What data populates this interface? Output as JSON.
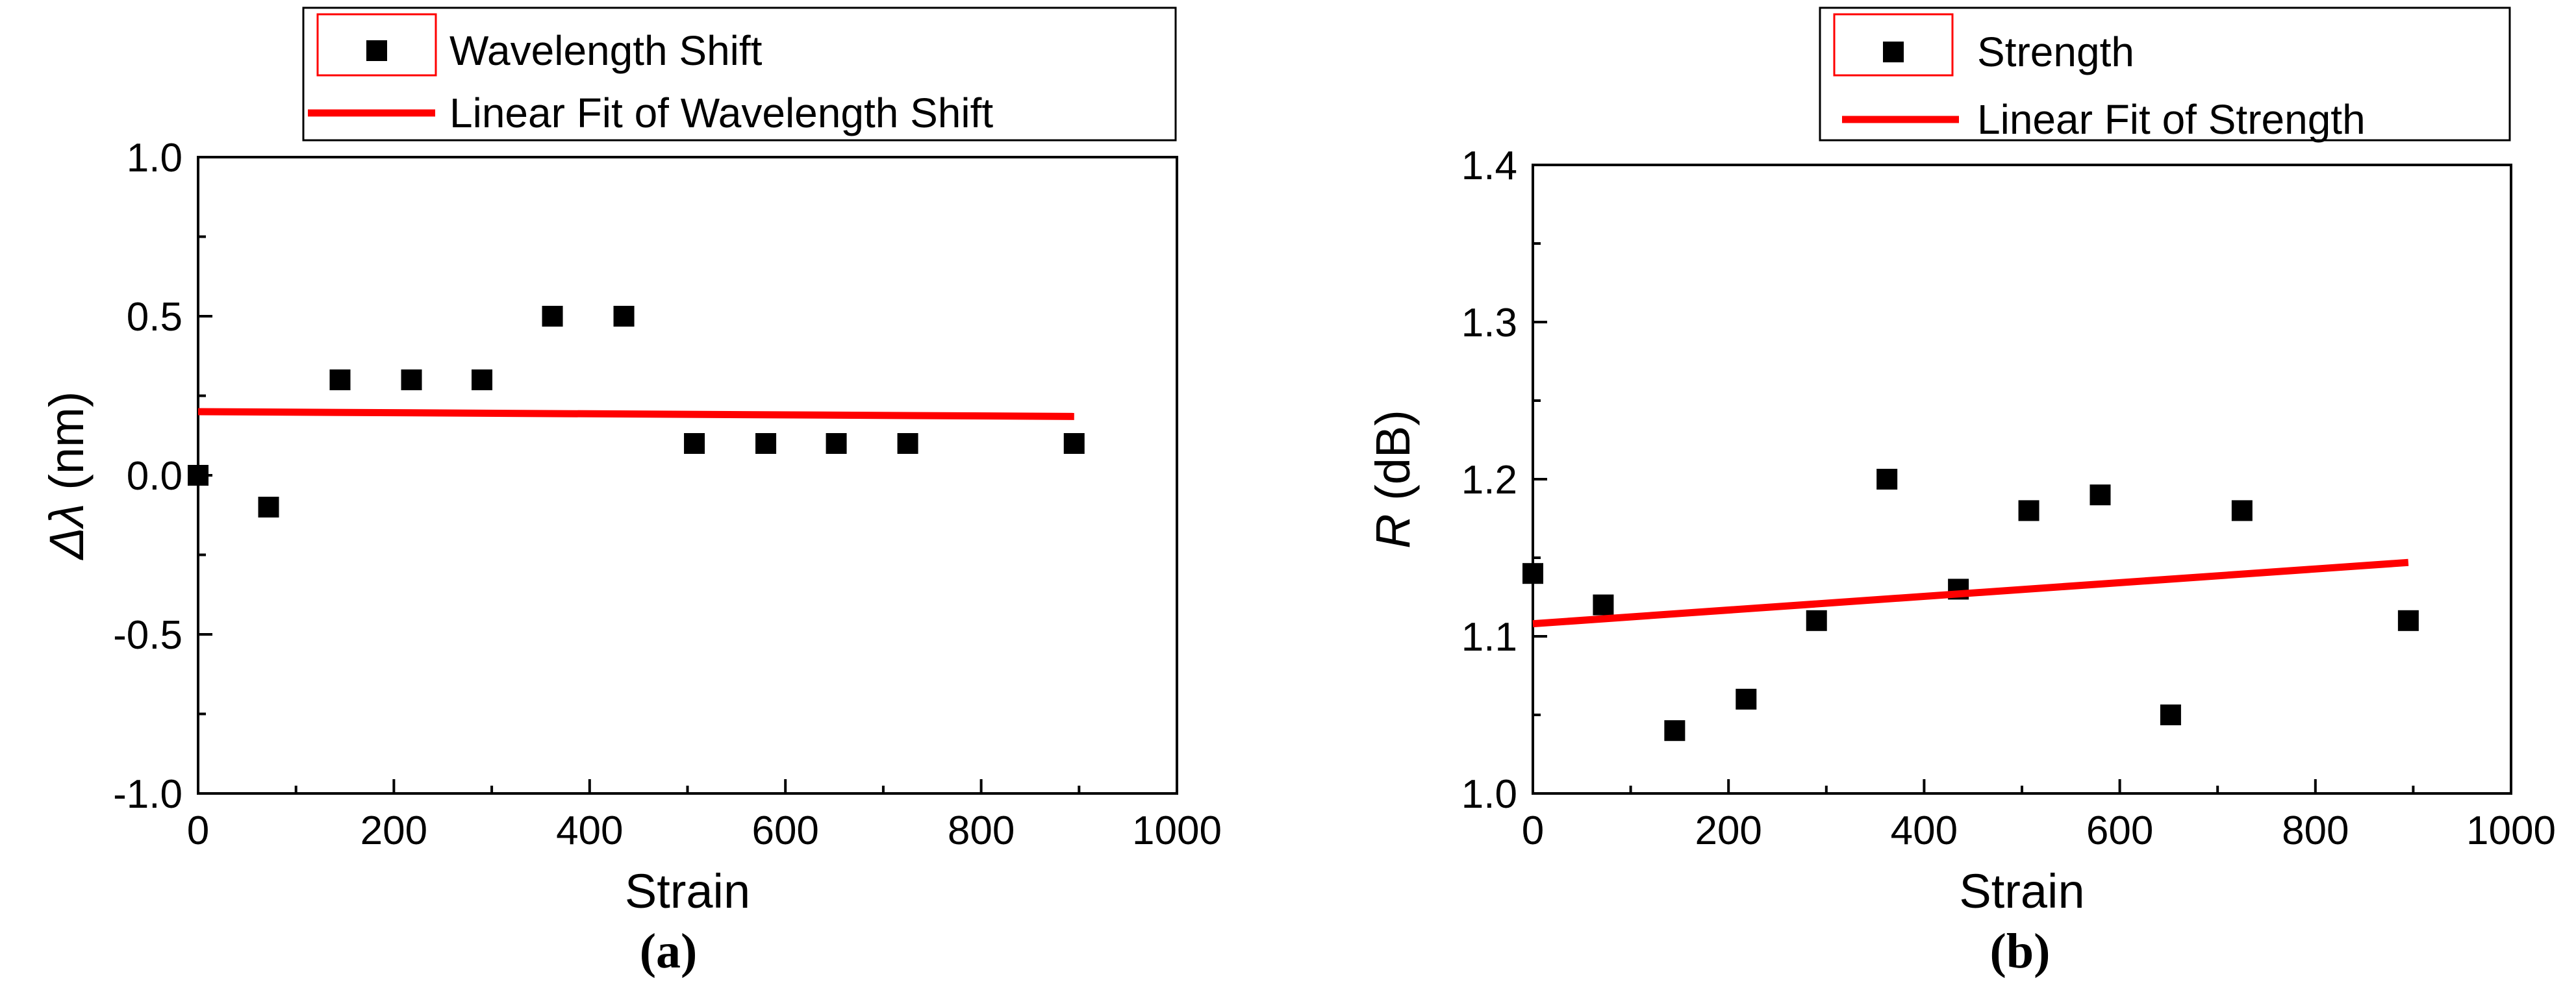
{
  "chart_data": [
    {
      "type": "scatter",
      "panel_label": "(a)",
      "xlabel": "Strain",
      "ylabel_symbol": "Δλ",
      "ylabel_unit": "(nm)",
      "xlim": [
        0,
        1000
      ],
      "ylim": [
        -1.0,
        1.0
      ],
      "x_ticks": [
        0,
        200,
        400,
        600,
        800,
        1000
      ],
      "x_tick_labels": [
        "0",
        "200",
        "400",
        "600",
        "800",
        "1000"
      ],
      "y_ticks": [
        -1.0,
        -0.5,
        0.0,
        0.5,
        1.0
      ],
      "y_tick_labels": [
        "-1.0",
        "-0.5",
        "0.0",
        "0.5",
        "1.0"
      ],
      "grid": false,
      "legend_position": "top",
      "series": [
        {
          "name": "Wavelength Shift",
          "kind": "scatter",
          "marker": "square",
          "color": "#000000",
          "x": [
            0,
            72,
            145,
            218,
            290,
            362,
            435,
            507,
            580,
            652,
            725,
            895
          ],
          "y": [
            0.0,
            -0.1,
            0.3,
            0.3,
            0.3,
            0.5,
            0.5,
            0.1,
            0.1,
            0.1,
            0.1,
            0.1
          ]
        },
        {
          "name": "Linear Fit of Wavelength Shift",
          "kind": "line",
          "color": "#ff0000",
          "x": [
            0,
            895
          ],
          "y": [
            0.2,
            0.185
          ]
        }
      ]
    },
    {
      "type": "scatter",
      "panel_label": "(b)",
      "xlabel": "Strain",
      "ylabel_symbol": "R",
      "ylabel_unit": "(dB)",
      "xlim": [
        0,
        1000
      ],
      "ylim": [
        1.0,
        1.4
      ],
      "x_ticks": [
        0,
        200,
        400,
        600,
        800,
        1000
      ],
      "x_tick_labels": [
        "0",
        "200",
        "400",
        "600",
        "800",
        "1000"
      ],
      "y_ticks": [
        1.0,
        1.1,
        1.2,
        1.3,
        1.4
      ],
      "y_tick_labels": [
        "1.0",
        "1.1",
        "1.2",
        "1.3",
        "1.4"
      ],
      "grid": false,
      "legend_position": "top",
      "series": [
        {
          "name": "Strength",
          "kind": "scatter",
          "marker": "square",
          "color": "#000000",
          "x": [
            0,
            72,
            145,
            218,
            290,
            362,
            435,
            507,
            580,
            652,
            725,
            895
          ],
          "y": [
            1.14,
            1.12,
            1.04,
            1.06,
            1.11,
            1.2,
            1.13,
            1.18,
            1.19,
            1.05,
            1.18,
            1.11
          ]
        },
        {
          "name": "Linear Fit of Strength",
          "kind": "line",
          "color": "#ff0000",
          "x": [
            0,
            895
          ],
          "y": [
            1.108,
            1.147
          ]
        }
      ]
    }
  ]
}
